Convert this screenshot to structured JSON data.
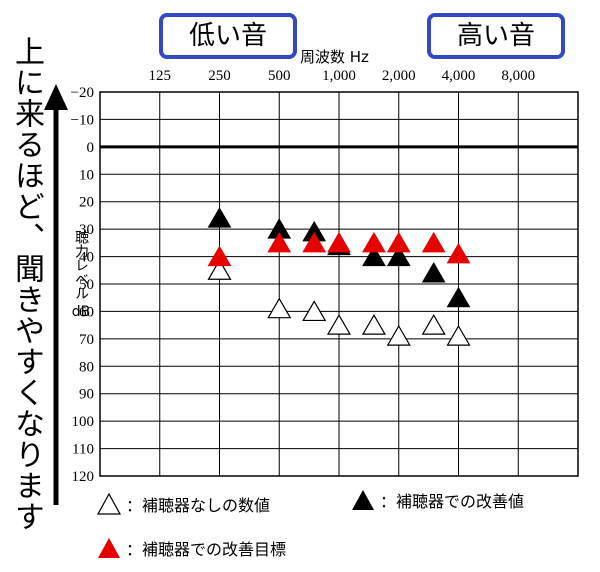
{
  "header": {
    "low_label": "低い音",
    "high_label": "高い音",
    "freq_title": "周波数 Hz"
  },
  "side_note": "上に来るほど、聞きやすくなります",
  "y_label": {
    "line1": "聴力レベル",
    "line2": "dB"
  },
  "legend": {
    "none": "：補聴器なしの数値",
    "improved": "：補聴器での改善値",
    "target": "：補聴器での改善目標"
  },
  "colors": {
    "accent_box": "#3349c4",
    "target": "#e60000",
    "improved": "#000000",
    "none": "#ffffff"
  },
  "chart_data": {
    "type": "scatter",
    "x_ticks": [
      "125",
      "250",
      "500",
      "1,000",
      "2,000",
      "4,000",
      "8,000"
    ],
    "x_tick_values": [
      125,
      250,
      500,
      1000,
      2000,
      4000,
      8000
    ],
    "x_scale": "log2",
    "y_ticks": [
      "−20",
      "−10",
      "0",
      "10",
      "20",
      "30",
      "40",
      "50",
      "60",
      "70",
      "80",
      "90",
      "100",
      "110",
      "120"
    ],
    "ylim": [
      -20,
      120
    ],
    "y_inverted": true,
    "grid": true,
    "series": [
      {
        "name": "補聴器なしの数値",
        "marker": "open-triangle",
        "x": [
          250,
          500,
          750,
          1000,
          1500,
          2000,
          3000,
          4000
        ],
        "y": [
          45,
          59,
          60,
          65,
          65,
          69,
          65,
          69
        ]
      },
      {
        "name": "補聴器での改善値",
        "marker": "black-triangle",
        "x": [
          250,
          500,
          750,
          1000,
          1500,
          2000,
          3000,
          4000
        ],
        "y": [
          26,
          30,
          31,
          36,
          40,
          40,
          46,
          55
        ]
      },
      {
        "name": "補聴器での改善目標",
        "marker": "red-triangle",
        "x": [
          250,
          500,
          750,
          1000,
          1500,
          2000,
          3000,
          4000
        ],
        "y": [
          40,
          35,
          35,
          35,
          35,
          35,
          35,
          39
        ]
      }
    ]
  }
}
